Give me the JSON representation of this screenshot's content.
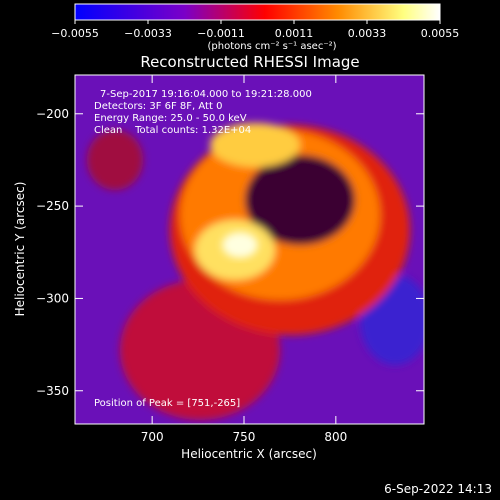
{
  "chart_data": {
    "type": "heatmap",
    "title": "Reconstructed RHESSI Image",
    "xlabel": "Heliocentric X (arcsec)",
    "ylabel": "Heliocentric Y (arcsec)",
    "xlim": [
      658,
      848
    ],
    "ylim": [
      -368,
      -179
    ],
    "xticks": [
      700,
      750,
      800
    ],
    "yticks": [
      -200,
      -250,
      -300,
      -350
    ],
    "colorbar": {
      "range": [
        -0.0055,
        0.0055
      ],
      "ticks": [
        "-0.0055",
        "-0.0033",
        "-0.0011",
        "0.0011",
        "0.0033",
        "0.0055"
      ],
      "unit_label": "(photons cm⁻² s⁻¹ asec⁻²)",
      "colormap": [
        "#0000ff",
        "#7a00c8",
        "#ff0000",
        "#ff8a00",
        "#ffff80",
        "#ffffff"
      ]
    },
    "annotations": {
      "time_range": "7-Sep-2017 19:16:04.000 to 19:21:28.000",
      "detectors": "Detectors: 3F 6F 8F, Att 0",
      "energy_range": "Energy Range: 25.0 - 50.0 keV",
      "clean_counts": "Clean    Total counts: 1.32E+04",
      "peak": "Position of Peak = [751,-265]"
    },
    "peak": [
      751,
      -265
    ]
  },
  "footer": {
    "timestamp": "6-Sep-2022 14:13"
  }
}
